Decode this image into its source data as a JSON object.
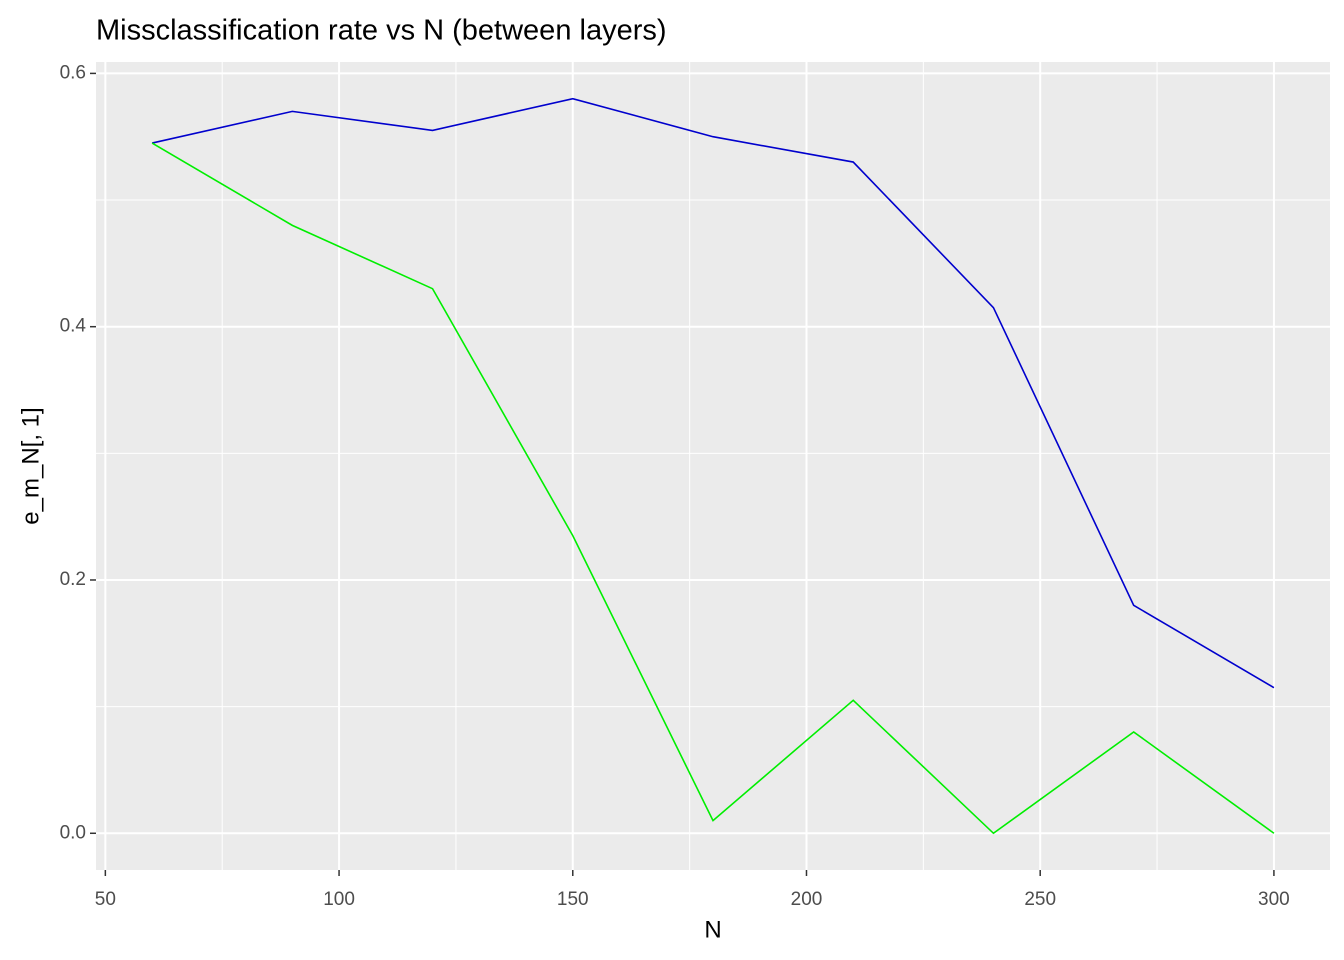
{
  "chart_data": {
    "type": "line",
    "title": "Missclassification rate vs N (between layers)",
    "x_label": "N",
    "y_label": "e_m_N[, 1]",
    "x": [
      60,
      90,
      120,
      150,
      180,
      210,
      240,
      270,
      300
    ],
    "series": [
      {
        "color": "#0000cd",
        "values": [
          0.545,
          0.57,
          0.555,
          0.58,
          0.55,
          0.53,
          0.415,
          0.18,
          0.115
        ]
      },
      {
        "color": "#00ee00",
        "values": [
          0.545,
          0.48,
          0.43,
          0.235,
          0.01,
          0.105,
          0,
          0.08,
          0
        ]
      }
    ],
    "xlim": [
      48,
      312
    ],
    "ylim": [
      -0.029,
      0.609
    ],
    "xticks": [
      50,
      100,
      150,
      200,
      250,
      300
    ],
    "yticks": [
      {
        "value": 0,
        "label": "0.0"
      },
      0.2,
      0.4,
      0.6
    ],
    "x_minor_ticks": [
      75,
      125,
      175,
      225,
      275
    ],
    "y_minor_ticks": [
      0.1,
      0.3,
      0.5
    ],
    "grid": true
  }
}
